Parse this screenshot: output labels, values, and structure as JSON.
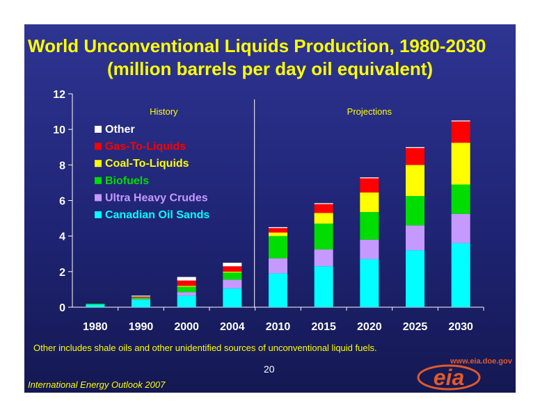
{
  "slide": {
    "title_line1": "World Unconventional Liquids Production, 1980-2030",
    "title_line2": "(million barrels per day oil equivalent)",
    "footnote": "Other includes shale oils and other unidentified sources of unconventional liquid fuels.",
    "page_number": "20",
    "source": "International Energy Outlook 2007",
    "url": "www.eia.doe.gov",
    "logo_text": "eia",
    "accent_color": "#ffff00",
    "logo_color": "#e05a2c"
  },
  "chart_data": {
    "type": "bar",
    "stacked": true,
    "categories": [
      "1980",
      "1990",
      "2000",
      "2004",
      "2010",
      "2015",
      "2020",
      "2025",
      "2030"
    ],
    "ylim": [
      0,
      12
    ],
    "yticks": [
      0,
      2,
      4,
      6,
      8,
      10,
      12
    ],
    "annotations": [
      "History",
      "Projections"
    ],
    "legend_placement": "upper-left",
    "series": [
      {
        "name": "Canadian Oil Sands",
        "color": "#00ffff",
        "values": [
          0.15,
          0.4,
          0.65,
          1.05,
          1.9,
          2.3,
          2.7,
          3.2,
          3.6
        ]
      },
      {
        "name": "Ultra Heavy Crudes",
        "color": "#c599ff",
        "values": [
          0.0,
          0.05,
          0.2,
          0.5,
          0.85,
          0.95,
          1.1,
          1.4,
          1.65
        ]
      },
      {
        "name": "Biofuels",
        "color": "#00dd00",
        "values": [
          0.05,
          0.1,
          0.3,
          0.4,
          1.25,
          1.45,
          1.55,
          1.65,
          1.65
        ]
      },
      {
        "name": "Coal-To-Liquids",
        "color": "#ffff00",
        "values": [
          0.0,
          0.0,
          0.05,
          0.05,
          0.2,
          0.6,
          1.1,
          1.75,
          2.35
        ]
      },
      {
        "name": "Gas-To-Liquids",
        "color": "#ff0000",
        "values": [
          0.0,
          0.05,
          0.3,
          0.3,
          0.25,
          0.5,
          0.8,
          0.95,
          1.2
        ]
      },
      {
        "name": "Other",
        "color": "#ffffff",
        "values": [
          0.0,
          0.05,
          0.2,
          0.2,
          0.05,
          0.05,
          0.05,
          0.05,
          0.05
        ]
      }
    ]
  }
}
